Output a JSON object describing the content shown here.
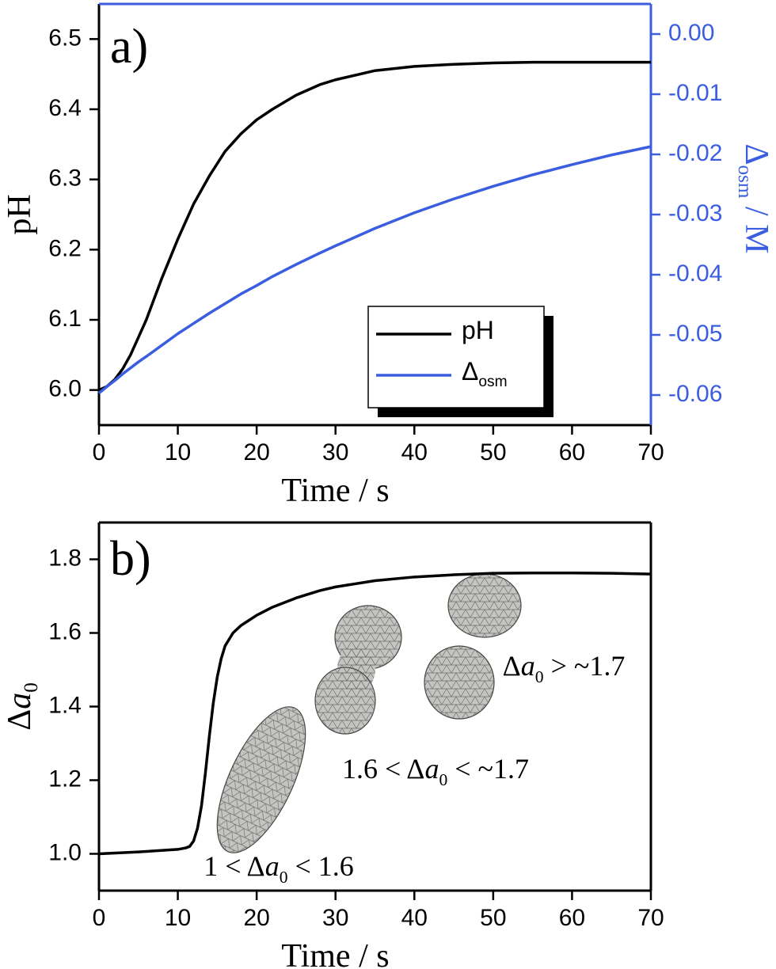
{
  "chart_data": [
    {
      "type": "line",
      "label": "a)",
      "xlabel": "Time / s",
      "ylabel": "pH",
      "y2label": "Δosm / M",
      "xlim": [
        0,
        70
      ],
      "xticks": [
        0,
        10,
        20,
        30,
        40,
        50,
        60,
        70
      ],
      "ylim": [
        5.95,
        6.55
      ],
      "yticks": [
        {
          "value": 6,
          "label": "6.0"
        },
        6.1,
        6.2,
        6.3,
        6.4,
        6.5
      ],
      "y2lim": [
        -0.065,
        0.005
      ],
      "y2ticks": [
        -0.06,
        -0.05,
        -0.04,
        -0.03,
        -0.02,
        -0.01,
        {
          "value": 0,
          "label": "0.00"
        }
      ],
      "legend": "lower right",
      "series": [
        {
          "name": "pH",
          "color": "#000000",
          "x": [
            0,
            1,
            2,
            3,
            4,
            5,
            6,
            8,
            10,
            12,
            14,
            16,
            18,
            20,
            22,
            25,
            28,
            30,
            35,
            40,
            45,
            50,
            55,
            60,
            65,
            70
          ],
          "values": [
            6.0,
            6.005,
            6.015,
            6.03,
            6.05,
            6.075,
            6.1,
            6.16,
            6.215,
            6.265,
            6.305,
            6.34,
            6.365,
            6.385,
            6.4,
            6.42,
            6.435,
            6.442,
            6.455,
            6.461,
            6.464,
            6.466,
            6.467,
            6.467,
            6.467,
            6.467
          ]
        },
        {
          "name": "Δosm",
          "color": "#3b5ee0",
          "axis": "y2",
          "x": [
            0,
            1,
            2,
            3,
            4,
            5,
            6,
            8,
            10,
            12,
            14,
            16,
            18,
            20,
            22,
            25,
            28,
            30,
            35,
            40,
            45,
            50,
            55,
            60,
            65,
            70
          ],
          "values": [
            -0.0597,
            -0.0586,
            -0.0576,
            -0.0565,
            -0.0555,
            -0.0545,
            -0.0536,
            -0.0517,
            -0.0498,
            -0.0481,
            -0.0464,
            -0.0448,
            -0.0432,
            -0.0418,
            -0.0403,
            -0.0383,
            -0.0364,
            -0.0352,
            -0.0323,
            -0.0297,
            -0.0274,
            -0.0253,
            -0.0234,
            -0.0217,
            -0.0201,
            -0.0187
          ]
        }
      ]
    },
    {
      "type": "line",
      "label": "b)",
      "xlabel": "Time / s",
      "ylabel": "Δa0",
      "xlim": [
        0,
        70
      ],
      "xticks": [
        0,
        10,
        20,
        30,
        40,
        50,
        60,
        70
      ],
      "ylim": [
        0.9,
        1.9
      ],
      "yticks": [
        {
          "value": 1,
          "label": "1.0"
        },
        1.2,
        1.4,
        1.6,
        1.8
      ],
      "series": [
        {
          "color": "#000000",
          "x": [
            0,
            5,
            10,
            11,
            11.5,
            12,
            12.5,
            13,
            13.5,
            14,
            14.5,
            15,
            15.5,
            16,
            17,
            18,
            20,
            22,
            25,
            28,
            30,
            35,
            40,
            45,
            50,
            55,
            60,
            65,
            70
          ],
          "values": [
            1.0,
            1.005,
            1.012,
            1.016,
            1.02,
            1.035,
            1.07,
            1.13,
            1.22,
            1.32,
            1.41,
            1.48,
            1.53,
            1.565,
            1.6,
            1.62,
            1.648,
            1.67,
            1.695,
            1.715,
            1.725,
            1.742,
            1.752,
            1.758,
            1.762,
            1.763,
            1.763,
            1.762,
            1.76
          ]
        }
      ],
      "annotations": [
        "1 < Δa0 < 1.6",
        "1.6 < Δa0 < ~1.7",
        "Δa0 > ~1.7"
      ]
    }
  ]
}
